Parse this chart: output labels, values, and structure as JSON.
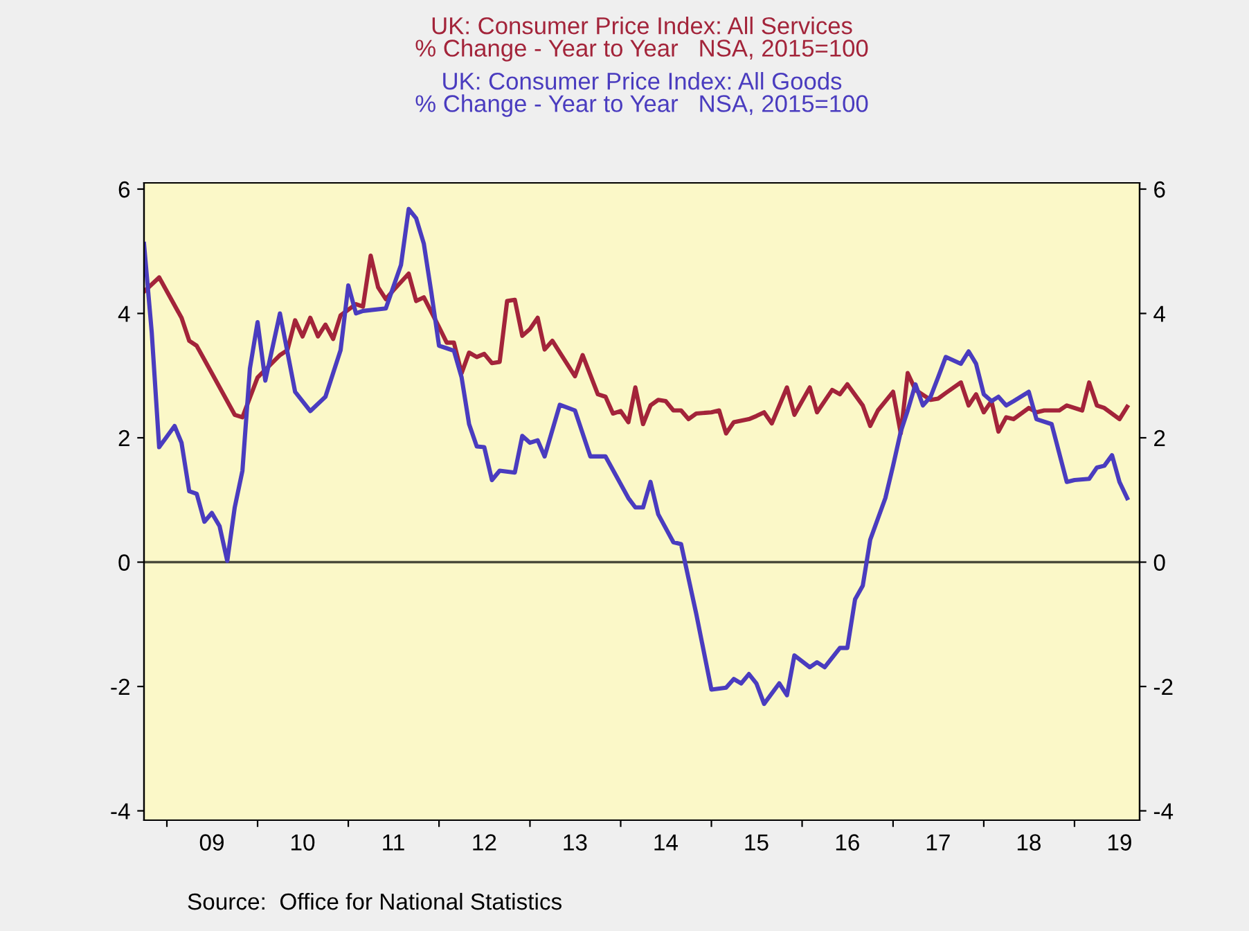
{
  "chart_data": {
    "type": "line",
    "series": [
      {
        "name": "UK: Consumer Price Index: All Services\n% Change - Year to Year   NSA, 2015=100",
        "color": "#a3243a",
        "x": [
          "2008-10",
          "2008-12",
          "2009-03",
          "2009-04",
          "2009-05",
          "2009-07",
          "2009-10",
          "2009-11",
          "2010-01",
          "2010-04",
          "2010-05",
          "2010-06",
          "2010-07",
          "2010-08",
          "2010-09",
          "2010-10",
          "2010-11",
          "2010-12",
          "2011-02",
          "2011-03",
          "2011-04",
          "2011-05",
          "2011-06",
          "2011-07",
          "2011-09",
          "2011-10",
          "2011-11",
          "2012-01",
          "2012-02",
          "2012-03",
          "2012-04",
          "2012-05",
          "2012-06",
          "2012-07",
          "2012-08",
          "2012-09",
          "2012-10",
          "2012-11",
          "2012-12",
          "2013-01",
          "2013-02",
          "2013-03",
          "2013-04",
          "2013-07",
          "2013-08",
          "2013-10",
          "2013-11",
          "2013-12",
          "2014-01",
          "2014-02",
          "2014-03",
          "2014-04",
          "2014-05",
          "2014-06",
          "2014-07",
          "2014-08",
          "2014-09",
          "2014-10",
          "2014-11",
          "2015-01",
          "2015-02",
          "2015-03",
          "2015-04",
          "2015-06",
          "2015-07",
          "2015-08",
          "2015-09",
          "2015-11",
          "2015-12",
          "2016-02",
          "2016-03",
          "2016-05",
          "2016-06",
          "2016-07",
          "2016-09",
          "2016-10",
          "2016-11",
          "2017-01",
          "2017-02",
          "2017-03",
          "2017-04",
          "2017-06",
          "2017-07",
          "2017-08",
          "2017-10",
          "2017-11",
          "2017-12",
          "2018-01",
          "2018-02",
          "2018-03",
          "2018-04",
          "2018-05",
          "2018-07",
          "2018-08",
          "2018-09",
          "2018-11",
          "2018-12",
          "2019-02",
          "2019-03",
          "2019-04",
          "2019-05",
          "2019-07",
          "2019-08"
        ],
        "values": [
          4.35,
          4.58,
          3.93,
          3.56,
          3.48,
          3.04,
          2.37,
          2.33,
          2.97,
          3.33,
          3.41,
          3.89,
          3.63,
          3.93,
          3.63,
          3.82,
          3.59,
          3.97,
          4.15,
          4.11,
          4.93,
          4.42,
          4.23,
          4.37,
          4.64,
          4.2,
          4.26,
          3.78,
          3.53,
          3.53,
          3.04,
          3.37,
          3.3,
          3.35,
          3.2,
          3.22,
          4.2,
          4.22,
          3.64,
          3.75,
          3.93,
          3.42,
          3.56,
          2.99,
          3.33,
          2.7,
          2.66,
          2.39,
          2.43,
          2.25,
          2.81,
          2.22,
          2.52,
          2.61,
          2.59,
          2.44,
          2.44,
          2.3,
          2.39,
          2.41,
          2.44,
          2.07,
          2.25,
          2.3,
          2.35,
          2.41,
          2.23,
          2.81,
          2.37,
          2.81,
          2.41,
          2.77,
          2.7,
          2.86,
          2.52,
          2.19,
          2.44,
          2.74,
          2.07,
          3.04,
          2.77,
          2.61,
          2.63,
          2.72,
          2.89,
          2.52,
          2.7,
          2.41,
          2.59,
          2.1,
          2.33,
          2.3,
          2.48,
          2.41,
          2.44,
          2.44,
          2.52,
          2.44,
          2.89,
          2.52,
          2.48,
          2.3,
          2.5
        ]
      },
      {
        "name": "UK: Consumer Price Index: All Goods\n% Change - Year to Year   NSA, 2015=100",
        "color": "#4a3cbf",
        "x": [
          "2008-10",
          "2008-11",
          "2008-12",
          "2009-02",
          "2009-03",
          "2009-04",
          "2009-05",
          "2009-06",
          "2009-07",
          "2009-08",
          "2009-09",
          "2009-10",
          "2009-11",
          "2009-12",
          "2010-01",
          "2010-02",
          "2010-04",
          "2010-06",
          "2010-08",
          "2010-10",
          "2010-12",
          "2011-01",
          "2011-02",
          "2011-03",
          "2011-06",
          "2011-08",
          "2011-09",
          "2011-10",
          "2011-11",
          "2011-12",
          "2012-01",
          "2012-02",
          "2012-03",
          "2012-04",
          "2012-05",
          "2012-06",
          "2012-07",
          "2012-08",
          "2012-09",
          "2012-11",
          "2012-12",
          "2013-01",
          "2013-02",
          "2013-03",
          "2013-05",
          "2013-07",
          "2013-09",
          "2013-11",
          "2014-02",
          "2014-03",
          "2014-04",
          "2014-05",
          "2014-06",
          "2014-08",
          "2014-09",
          "2014-11",
          "2015-01",
          "2015-03",
          "2015-04",
          "2015-05",
          "2015-06",
          "2015-07",
          "2015-08",
          "2015-10",
          "2015-11",
          "2015-12",
          "2016-02",
          "2016-03",
          "2016-04",
          "2016-06",
          "2016-07",
          "2016-08",
          "2016-09",
          "2016-10",
          "2016-12",
          "2017-01",
          "2017-02",
          "2017-03",
          "2017-04",
          "2017-05",
          "2017-06",
          "2017-07",
          "2017-08",
          "2017-10",
          "2017-11",
          "2017-12",
          "2018-01",
          "2018-02",
          "2018-03",
          "2018-04",
          "2018-05",
          "2018-07",
          "2018-08",
          "2018-10",
          "2018-12",
          "2019-01",
          "2019-03",
          "2019-04",
          "2019-05",
          "2019-06",
          "2019-07",
          "2019-08"
        ],
        "values": [
          5.12,
          3.7,
          1.85,
          2.19,
          1.92,
          1.14,
          1.1,
          0.65,
          0.79,
          0.58,
          0.02,
          0.88,
          1.47,
          3.11,
          3.86,
          2.92,
          4.0,
          2.74,
          2.43,
          2.66,
          3.41,
          4.45,
          4.0,
          4.04,
          4.08,
          4.78,
          5.68,
          5.53,
          5.12,
          4.34,
          3.48,
          3.44,
          3.4,
          2.97,
          2.22,
          1.86,
          1.85,
          1.32,
          1.47,
          1.44,
          2.03,
          1.92,
          1.96,
          1.7,
          2.53,
          2.44,
          1.7,
          1.7,
          1.03,
          0.88,
          0.88,
          1.29,
          0.77,
          0.32,
          0.29,
          -0.83,
          -2.05,
          -2.02,
          -1.88,
          -1.95,
          -1.8,
          -1.95,
          -2.28,
          -1.95,
          -2.14,
          -1.5,
          -1.69,
          -1.61,
          -1.69,
          -1.38,
          -1.38,
          -0.6,
          -0.38,
          0.36,
          1.03,
          1.55,
          2.1,
          2.44,
          2.86,
          2.52,
          2.66,
          2.97,
          3.3,
          3.19,
          3.39,
          3.19,
          2.7,
          2.59,
          2.66,
          2.52,
          2.59,
          2.74,
          2.3,
          2.22,
          1.29,
          1.32,
          1.34,
          1.52,
          1.55,
          1.72,
          1.29,
          1.03
        ]
      }
    ],
    "xlim": [
      "2008-10-01",
      "2019-09-20"
    ],
    "xticks": [
      {
        "value": "2009-01-01",
        "label": null
      },
      {
        "value": "2009-07-01",
        "label": "09"
      },
      {
        "value": "2010-01-01",
        "label": null
      },
      {
        "value": "2010-07-01",
        "label": "10"
      },
      {
        "value": "2011-01-01",
        "label": null
      },
      {
        "value": "2011-07-01",
        "label": "11"
      },
      {
        "value": "2012-01-01",
        "label": null
      },
      {
        "value": "2012-07-01",
        "label": "12"
      },
      {
        "value": "2013-01-01",
        "label": null
      },
      {
        "value": "2013-07-01",
        "label": "13"
      },
      {
        "value": "2014-01-01",
        "label": null
      },
      {
        "value": "2014-07-01",
        "label": "14"
      },
      {
        "value": "2015-01-01",
        "label": null
      },
      {
        "value": "2015-07-01",
        "label": "15"
      },
      {
        "value": "2016-01-01",
        "label": null
      },
      {
        "value": "2016-07-01",
        "label": "16"
      },
      {
        "value": "2017-01-01",
        "label": null
      },
      {
        "value": "2017-07-01",
        "label": "17"
      },
      {
        "value": "2018-01-01",
        "label": null
      },
      {
        "value": "2018-07-01",
        "label": "18"
      },
      {
        "value": "2019-01-01",
        "label": null
      },
      {
        "value": "2019-07-01",
        "label": "19"
      }
    ],
    "ylim": [
      -4.15,
      6.1
    ],
    "yticks": [
      -4,
      -2,
      0,
      2,
      4,
      6
    ],
    "y2lim": [
      -4.15,
      6.1
    ],
    "y2ticks": [
      -4,
      -2,
      0,
      2,
      4,
      6
    ],
    "ref_lines": [
      {
        "axis": "y",
        "value": 0,
        "color": "#4a4a3a"
      }
    ],
    "legend": "top",
    "annotations": [
      "Source:  Office for National Statistics"
    ]
  }
}
